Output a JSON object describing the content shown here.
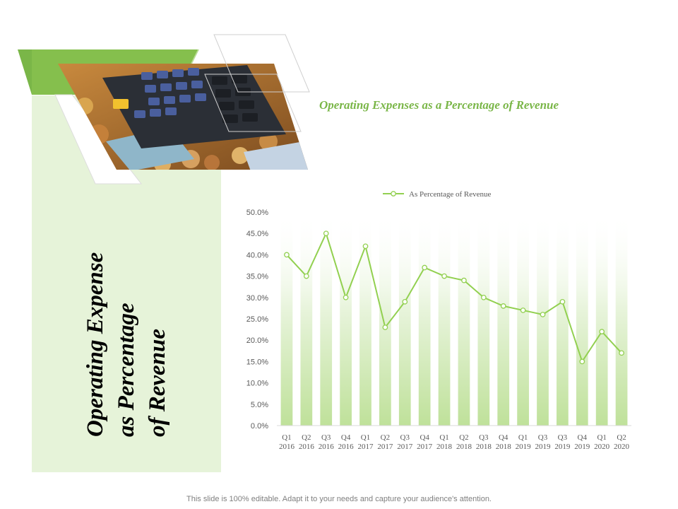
{
  "slide": {
    "side_title_lines": [
      "Operating Expense",
      "as Percentage",
      "of Revenue"
    ],
    "chart_heading": "Operating Expenses as a Percentage of Revenue",
    "footer": "This slide is 100% editable. Adapt it to your needs and capture your audience's attention.",
    "photo_alt": "calculator-and-coins-photo"
  },
  "colors": {
    "accent_green": "#7ab648",
    "line_green": "#92d050",
    "panel_green": "#e6f3d9"
  },
  "chart_data": {
    "type": "line",
    "title": "",
    "legend_position": "top",
    "categories": [
      [
        "Q1",
        "2016"
      ],
      [
        "Q2",
        "2016"
      ],
      [
        "Q3",
        "2016"
      ],
      [
        "Q4",
        "2016"
      ],
      [
        "Q1",
        "2017"
      ],
      [
        "Q2",
        "2017"
      ],
      [
        "Q3",
        "2017"
      ],
      [
        "Q4",
        "2017"
      ],
      [
        "Q1",
        "2018"
      ],
      [
        "Q2",
        "2018"
      ],
      [
        "Q3",
        "2018"
      ],
      [
        "Q4",
        "2018"
      ],
      [
        "Q1",
        "2019"
      ],
      [
        "Q3",
        "2019"
      ],
      [
        "Q3",
        "2019"
      ],
      [
        "Q4",
        "2019"
      ],
      [
        "Q1",
        "2020"
      ],
      [
        "Q2",
        "2020"
      ]
    ],
    "series": [
      {
        "name": "As Percentage of Revenue",
        "values": [
          40,
          35,
          45,
          30,
          42,
          23,
          29,
          37,
          35,
          34,
          30,
          28,
          27,
          26,
          29,
          15,
          22,
          17
        ]
      }
    ],
    "ylim": [
      0,
      50
    ],
    "yticks": [
      "0.0%",
      "5.0%",
      "10.0%",
      "15.0%",
      "20.0%",
      "25.0%",
      "30.0%",
      "35.0%",
      "40.0%",
      "45.0%",
      "50.0%"
    ],
    "grid": false,
    "xlabel": "",
    "ylabel": ""
  }
}
